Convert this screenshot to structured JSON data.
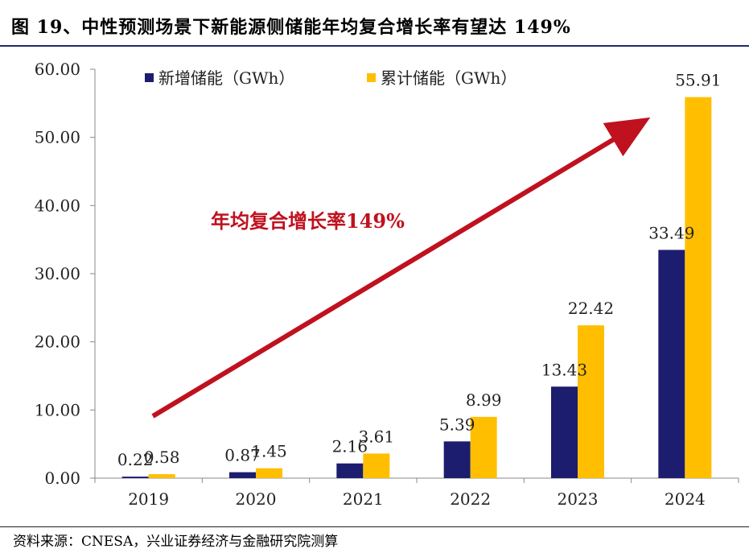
{
  "figure": {
    "title": "图 19、中性预测场景下新能源侧储能年均复合增长率有望达 149%",
    "source": "资料来源：CNESA，兴业证券经济与金融研究院测算"
  },
  "colors": {
    "series_new": "#1c1d6e",
    "series_cumulative": "#ffbf00",
    "annotation": "#c0111f",
    "axis": "#8a8a8a",
    "rule": "#1f2a6b"
  },
  "chart_data": {
    "type": "bar",
    "categories": [
      "2019",
      "2020",
      "2021",
      "2022",
      "2023",
      "2024"
    ],
    "series": [
      {
        "name": "新增储能（GWh）",
        "values": [
          0.22,
          0.87,
          2.16,
          5.39,
          13.43,
          33.49
        ],
        "labels": [
          "0.22",
          "0.87",
          "2.16",
          "5.39",
          "13.43",
          "33.49"
        ]
      },
      {
        "name": "累计储能（GWh）",
        "values": [
          0.58,
          1.45,
          3.61,
          8.99,
          22.42,
          55.91
        ],
        "labels": [
          "0.58",
          "1.45",
          "3.61",
          "8.99",
          "22.42",
          "55.91"
        ]
      }
    ],
    "ylim": [
      0,
      60
    ],
    "yticks": [
      "0.00",
      "10.00",
      "20.00",
      "30.00",
      "40.00",
      "50.00",
      "60.00"
    ],
    "grid": false,
    "legend_position": "top-left",
    "annotation": {
      "text": "年均复合增长率149%",
      "arrow": "upward trend from 2019 to 2024"
    }
  }
}
